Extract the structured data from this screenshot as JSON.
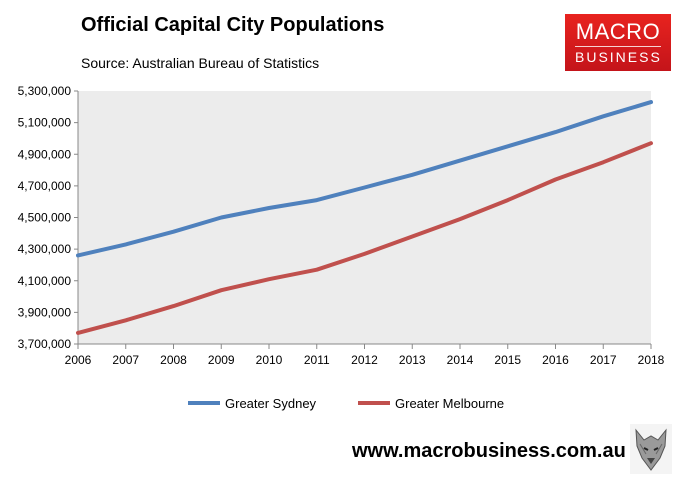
{
  "header": {
    "title": "Official Capital City Populations",
    "subtitle": "Source: Australian Bureau of Statistics"
  },
  "logo": {
    "line1": "MACRO",
    "line2": "BUSINESS",
    "color": "#d81e1e"
  },
  "footer": {
    "url": "www.macrobusiness.com.au",
    "icon": "wolf-icon"
  },
  "chart_data": {
    "type": "line",
    "title": "Official Capital City Populations",
    "x": [
      2006,
      2007,
      2008,
      2009,
      2010,
      2011,
      2012,
      2013,
      2014,
      2015,
      2016,
      2017,
      2018
    ],
    "x_labels": [
      "2006",
      "2007",
      "2008",
      "2009",
      "2010",
      "2011",
      "2012",
      "2013",
      "2014",
      "2015",
      "2016",
      "2017",
      "2018"
    ],
    "ylim": [
      3700000,
      5300000
    ],
    "y_ticks": [
      3700000,
      3900000,
      4100000,
      4300000,
      4500000,
      4700000,
      4900000,
      5100000,
      5300000
    ],
    "y_tick_labels": [
      "3,700,000",
      "3,900,000",
      "4,100,000",
      "4,300,000",
      "4,500,000",
      "4,700,000",
      "4,900,000",
      "5,100,000",
      "5,300,000"
    ],
    "grid": false,
    "legend_position": "bottom",
    "series": [
      {
        "name": "Greater Sydney",
        "color": "#4f81bd",
        "values": [
          4260000,
          4330000,
          4410000,
          4500000,
          4560000,
          4610000,
          4690000,
          4770000,
          4860000,
          4950000,
          5040000,
          5140000,
          5230000
        ]
      },
      {
        "name": "Greater Melbourne",
        "color": "#c0504d",
        "values": [
          3770000,
          3850000,
          3940000,
          4040000,
          4110000,
          4170000,
          4270000,
          4380000,
          4490000,
          4610000,
          4740000,
          4850000,
          4970000
        ]
      }
    ]
  }
}
